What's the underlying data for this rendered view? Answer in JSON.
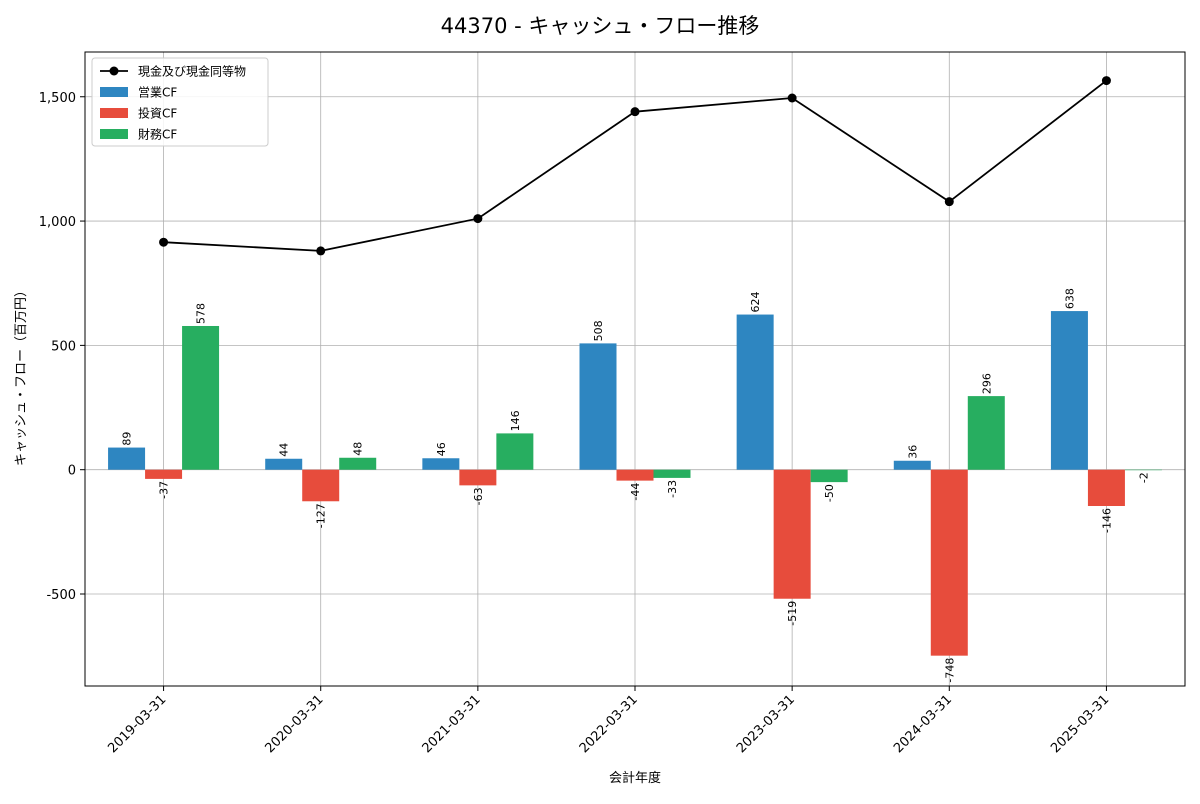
{
  "chart_data": {
    "type": "bar",
    "title": "44370 - キャッシュ・フロー推移",
    "xlabel": "会計年度",
    "ylabel": "キャッシュ・フロー（百万円）",
    "categories": [
      "2019-03-31",
      "2020-03-31",
      "2021-03-31",
      "2022-03-31",
      "2023-03-31",
      "2024-03-31",
      "2025-03-31"
    ],
    "series": [
      {
        "name": "営業CF",
        "kind": "bar",
        "color": "#2e86c1",
        "values": [
          89,
          44,
          46,
          508,
          624,
          36,
          638
        ]
      },
      {
        "name": "投資CF",
        "kind": "bar",
        "color": "#e74c3c",
        "values": [
          -37,
          -127,
          -63,
          -44,
          -519,
          -748,
          -146
        ]
      },
      {
        "name": "財務CF",
        "kind": "bar",
        "color": "#27ae60",
        "values": [
          578,
          48,
          146,
          -33,
          -50,
          296,
          -2
        ]
      },
      {
        "name": "現金及び現金同等物",
        "kind": "line",
        "color": "#000000",
        "values": [
          915,
          880,
          1010,
          1440,
          1495,
          1078,
          1565
        ]
      }
    ],
    "ylim": [
      -870,
      1680
    ],
    "yticks": [
      -500,
      0,
      500,
      1000,
      1500
    ],
    "ytick_labels": [
      "-500",
      "0",
      "500",
      "1,000",
      "1,500"
    ],
    "grid": true,
    "legend_position": "top-left"
  }
}
